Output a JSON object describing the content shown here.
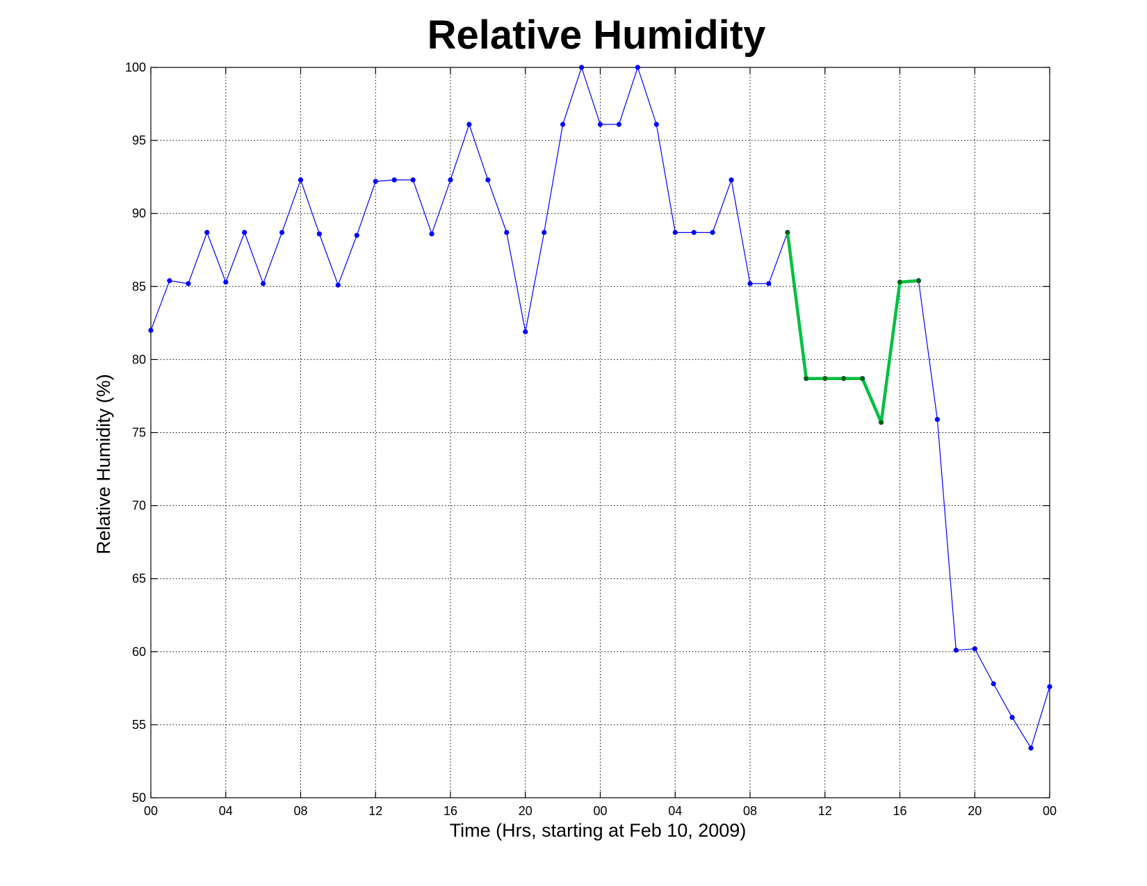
{
  "chart_data": {
    "type": "line",
    "title": "Relative Humidity",
    "xlabel": "Time (Hrs, starting at Feb 10, 2009)",
    "ylabel": "Relative Humidity (%)",
    "xlim": [
      0,
      48
    ],
    "ylim": [
      50,
      100
    ],
    "grid": true,
    "x_tick_values": [
      0,
      4,
      8,
      12,
      16,
      20,
      24,
      28,
      32,
      36,
      40,
      44,
      48
    ],
    "x_tick_labels": [
      "00",
      "04",
      "08",
      "12",
      "16",
      "20",
      "00",
      "04",
      "08",
      "12",
      "16",
      "20",
      "00"
    ],
    "y_tick_values": [
      50,
      55,
      60,
      65,
      70,
      75,
      80,
      85,
      90,
      95,
      100
    ],
    "y_tick_labels": [
      "50",
      "55",
      "60",
      "65",
      "70",
      "75",
      "80",
      "85",
      "90",
      "95",
      "100"
    ],
    "series": [
      {
        "color": "#0000ff",
        "marker_color": "#0000ff",
        "x": [
          0,
          1,
          2,
          3,
          4,
          5,
          6,
          7,
          8,
          9,
          10,
          11,
          12,
          13,
          14,
          15,
          16,
          17,
          18,
          19,
          20,
          21,
          22,
          23,
          24,
          25,
          26,
          27,
          28,
          29,
          30,
          31,
          32,
          33,
          34,
          35,
          36,
          37,
          38,
          39,
          40,
          41,
          42,
          43,
          44,
          45,
          46,
          47,
          48
        ],
        "y": [
          82.0,
          85.4,
          85.2,
          88.7,
          85.3,
          88.7,
          85.2,
          88.7,
          92.3,
          88.6,
          85.1,
          88.5,
          92.2,
          92.3,
          92.3,
          88.6,
          92.3,
          96.1,
          92.3,
          88.7,
          81.9,
          88.7,
          96.1,
          100.0,
          96.1,
          96.1,
          100.0,
          96.1,
          88.7,
          88.7,
          88.7,
          92.3,
          85.2,
          85.2,
          88.7,
          78.7,
          78.7,
          78.7,
          78.7,
          75.7,
          85.3,
          85.4,
          75.9,
          60.1,
          60.2,
          57.8,
          55.5,
          53.4,
          57.6
        ]
      },
      {
        "color": "#00c040",
        "marker_color": "#006400",
        "x": [
          34,
          35,
          36,
          37,
          38,
          39,
          40,
          41
        ],
        "y": [
          88.7,
          78.7,
          78.7,
          78.7,
          78.7,
          75.7,
          85.3,
          85.4
        ]
      }
    ]
  }
}
